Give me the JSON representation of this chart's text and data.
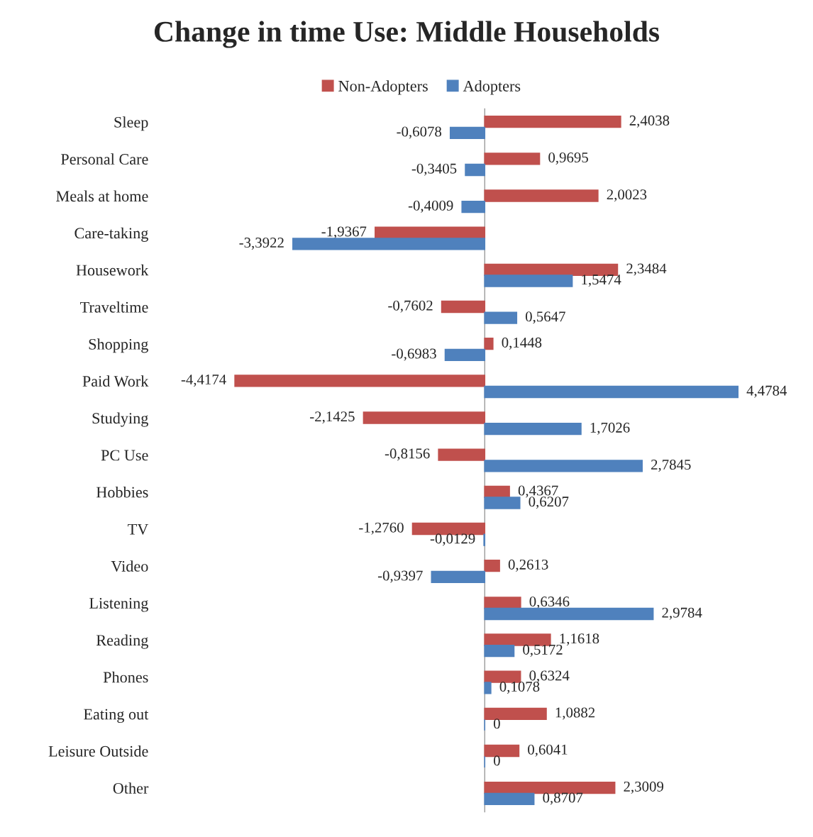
{
  "chart_data": {
    "type": "bar",
    "orientation": "horizontal",
    "title": "Change in time Use: Middle Households",
    "legend": "top",
    "tick_labels": "y",
    "categories": [
      "Sleep",
      "Personal Care",
      "Meals at home",
      "Care-taking",
      "Housework",
      "Traveltime",
      "Shopping",
      "Paid Work",
      "Studying",
      "PC Use",
      "Hobbies",
      "TV",
      "Video",
      "Listening",
      "Reading",
      "Phones",
      "Eating out",
      "Leisure Outside",
      "Other"
    ],
    "series": [
      {
        "name": "Non-Adopters",
        "color": "#c0504d",
        "values": [
          2.4038,
          0.9695,
          2.0023,
          -1.9367,
          2.3484,
          -0.7602,
          0.1448,
          -4.4174,
          -2.1425,
          -0.8156,
          0.4367,
          -1.276,
          0.2613,
          0.6346,
          1.1618,
          0.6324,
          1.0882,
          0.6041,
          2.3009
        ],
        "value_labels": [
          "2,4038",
          "0,9695",
          "2,0023",
          "-1,9367",
          "2,3484",
          "-0,7602",
          "0,1448",
          "-4,4174",
          "-2,1425",
          "-0,8156",
          "0,4367",
          "-1,2760",
          "0,2613",
          "0,6346",
          "1,1618",
          "0,6324",
          "1,0882",
          "0,6041",
          "2,3009"
        ]
      },
      {
        "name": "Adopters",
        "color": "#4f81bd",
        "values": [
          -0.6078,
          -0.3405,
          -0.4009,
          -3.3922,
          1.5474,
          0.5647,
          -0.6983,
          4.4784,
          1.7026,
          2.7845,
          0.6207,
          -0.0129,
          -0.9397,
          2.9784,
          0.5172,
          0.1078,
          0,
          0,
          0.8707
        ],
        "value_labels": [
          "-0,6078",
          "-0,3405",
          "-0,4009",
          "-3,3922",
          "1,5474",
          "0,5647",
          "-0,6983",
          "4,4784",
          "1,7026",
          "2,7845",
          "0,6207",
          "-0,0129",
          "-0,9397",
          "2,9784",
          "0,5172",
          "0,1078",
          "0",
          "0",
          "0,8707"
        ]
      }
    ]
  }
}
